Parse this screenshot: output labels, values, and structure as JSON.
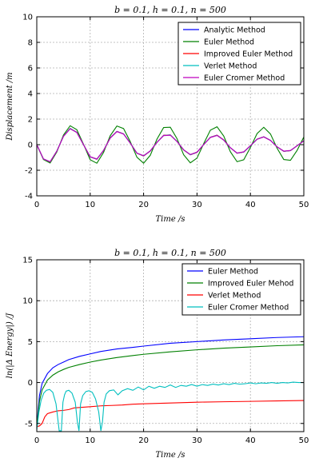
{
  "chart_data": [
    {
      "type": "line",
      "title": "b = 0.1, h = 0.1, n = 500",
      "xlabel": "Time /s",
      "ylabel": "Displacement /m",
      "xlim": [
        0,
        50
      ],
      "ylim": [
        -4,
        10
      ],
      "xticks": [
        0,
        10,
        20,
        30,
        40,
        50
      ],
      "yticks": [
        -4,
        -2,
        0,
        2,
        4,
        6,
        8,
        10
      ],
      "grid": true,
      "legend_position": "top-right",
      "series": [
        {
          "name": "Analytic Method",
          "color": "#0000ff",
          "x": [
            0,
            1.25,
            2.5,
            3.75,
            5,
            6.25,
            7.5,
            8.75,
            10,
            11.25,
            12.5,
            13.75,
            15,
            16.25,
            17.5,
            18.75,
            20,
            21.25,
            22.5,
            23.75,
            25,
            26.25,
            27.5,
            28.75,
            30,
            31.25,
            32.5,
            33.75,
            35,
            36.25,
            37.5,
            38.75,
            40,
            41.25,
            42.5,
            43.75,
            45,
            46.25,
            47.5,
            48.75,
            50
          ],
          "y": [
            0,
            -1.13,
            -1.35,
            -0.51,
            0.67,
            1.27,
            0.97,
            0.0,
            -0.96,
            -1.14,
            -0.46,
            0.53,
            1.04,
            0.85,
            0.13,
            -0.67,
            -0.88,
            -0.5,
            0.18,
            0.73,
            0.76,
            0.26,
            -0.41,
            -0.79,
            -0.6,
            0.01,
            0.58,
            0.74,
            0.37,
            -0.24,
            -0.67,
            -0.58,
            -0.09,
            0.43,
            0.62,
            0.34,
            -0.17,
            -0.52,
            -0.47,
            -0.08,
            0.31
          ]
        },
        {
          "name": "Euler Method",
          "color": "#008000",
          "x": [
            0,
            1.25,
            2.5,
            3.75,
            5,
            6.25,
            7.5,
            8.75,
            10,
            11.25,
            12.5,
            13.75,
            15,
            16.25,
            17.5,
            18.75,
            20,
            21.25,
            22.5,
            23.75,
            25,
            26.25,
            27.5,
            28.75,
            30,
            31.25,
            32.5,
            33.75,
            35,
            36.25,
            37.5,
            38.75,
            40,
            41.25,
            42.5,
            43.75,
            45,
            46.25,
            47.5,
            48.75,
            50
          ],
          "y": [
            0,
            -1.16,
            -1.43,
            -0.57,
            0.76,
            1.48,
            1.17,
            0.03,
            -1.18,
            -1.45,
            -0.61,
            0.7,
            1.46,
            1.26,
            0.24,
            -0.98,
            -1.45,
            -0.83,
            0.43,
            1.34,
            1.36,
            0.48,
            -0.79,
            -1.42,
            -1.05,
            0.08,
            1.13,
            1.4,
            0.68,
            -0.55,
            -1.33,
            -1.18,
            -0.22,
            0.87,
            1.36,
            0.84,
            -0.28,
            -1.16,
            -1.22,
            -0.44,
            0.6
          ]
        },
        {
          "name": "Improved Euler Method",
          "color": "#ff0000",
          "x": [
            0,
            1.25,
            2.5,
            3.75,
            5,
            6.25,
            7.5,
            8.75,
            10,
            11.25,
            12.5,
            13.75,
            15,
            16.25,
            17.5,
            18.75,
            20,
            21.25,
            22.5,
            23.75,
            25,
            26.25,
            27.5,
            28.75,
            30,
            31.25,
            32.5,
            33.75,
            35,
            36.25,
            37.5,
            38.75,
            40,
            41.25,
            42.5,
            43.75,
            45,
            46.25,
            47.5,
            48.75,
            50
          ],
          "y": [
            0,
            -1.13,
            -1.35,
            -0.51,
            0.67,
            1.27,
            0.97,
            0.0,
            -0.96,
            -1.14,
            -0.46,
            0.53,
            1.04,
            0.85,
            0.13,
            -0.67,
            -0.88,
            -0.5,
            0.18,
            0.73,
            0.76,
            0.26,
            -0.41,
            -0.79,
            -0.6,
            0.01,
            0.58,
            0.74,
            0.37,
            -0.24,
            -0.67,
            -0.58,
            -0.09,
            0.43,
            0.62,
            0.34,
            -0.17,
            -0.52,
            -0.47,
            -0.08,
            0.31
          ]
        },
        {
          "name": "Verlet Method",
          "color": "#00bfbf",
          "x": [
            0,
            1.25,
            2.5,
            3.75,
            5,
            6.25,
            7.5,
            8.75,
            10,
            11.25,
            12.5,
            13.75,
            15,
            16.25,
            17.5,
            18.75,
            20,
            21.25,
            22.5,
            23.75,
            25,
            26.25,
            27.5,
            28.75,
            30,
            31.25,
            32.5,
            33.75,
            35,
            36.25,
            37.5,
            38.75,
            40,
            41.25,
            42.5,
            43.75,
            45,
            46.25,
            47.5,
            48.75,
            50
          ],
          "y": [
            0,
            -1.12,
            -1.34,
            -0.5,
            0.66,
            1.26,
            0.96,
            0.0,
            -0.95,
            -1.13,
            -0.45,
            0.52,
            1.03,
            0.84,
            0.13,
            -0.66,
            -0.87,
            -0.49,
            0.18,
            0.72,
            0.75,
            0.26,
            -0.4,
            -0.78,
            -0.59,
            0.01,
            0.57,
            0.73,
            0.36,
            -0.24,
            -0.66,
            -0.57,
            -0.09,
            0.42,
            0.61,
            0.34,
            -0.17,
            -0.51,
            -0.46,
            -0.08,
            0.3
          ]
        },
        {
          "name": "Euler Cromer Method",
          "color": "#bf00bf",
          "x": [
            0,
            1.25,
            2.5,
            3.75,
            5,
            6.25,
            7.5,
            8.75,
            10,
            11.25,
            12.5,
            13.75,
            15,
            16.25,
            17.5,
            18.75,
            20,
            21.25,
            22.5,
            23.75,
            25,
            26.25,
            27.5,
            28.75,
            30,
            31.25,
            32.5,
            33.75,
            35,
            36.25,
            37.5,
            38.75,
            40,
            41.25,
            42.5,
            43.75,
            45,
            46.25,
            47.5,
            48.75,
            50
          ],
          "y": [
            0,
            -1.11,
            -1.33,
            -0.5,
            0.65,
            1.24,
            0.95,
            0.0,
            -0.94,
            -1.12,
            -0.45,
            0.51,
            1.02,
            0.83,
            0.12,
            -0.66,
            -0.86,
            -0.48,
            0.18,
            0.71,
            0.74,
            0.25,
            -0.4,
            -0.77,
            -0.58,
            0.01,
            0.56,
            0.72,
            0.36,
            -0.24,
            -0.65,
            -0.56,
            -0.08,
            0.42,
            0.6,
            0.33,
            -0.17,
            -0.5,
            -0.45,
            -0.08,
            0.3
          ]
        }
      ]
    },
    {
      "type": "line",
      "title": "b = 0.1, h = 0.1, n = 500",
      "xlabel": "Time /s",
      "ylabel": "ln(|Δ Energy|) /J",
      "xlim": [
        0,
        50
      ],
      "ylim": [
        -6,
        15
      ],
      "xticks": [
        0,
        10,
        20,
        30,
        40,
        50
      ],
      "yticks": [
        -5,
        0,
        5,
        10,
        15
      ],
      "grid": true,
      "legend_position": "top-right",
      "series": [
        {
          "name": "Euler Method",
          "color": "#0000ff",
          "x": [
            0.1,
            0.5,
            1,
            2,
            3,
            4,
            5,
            6,
            8,
            10,
            12,
            15,
            18,
            20,
            25,
            30,
            35,
            40,
            45,
            50
          ],
          "y": [
            -4.6,
            -1.6,
            -0.1,
            1.1,
            1.8,
            2.2,
            2.5,
            2.8,
            3.2,
            3.5,
            3.8,
            4.1,
            4.3,
            4.45,
            4.8,
            5.0,
            5.2,
            5.35,
            5.5,
            5.6
          ]
        },
        {
          "name": "Improved Euler Mehod",
          "color": "#008000",
          "x": [
            0.1,
            0.5,
            1,
            2,
            3,
            4,
            5,
            6,
            8,
            10,
            12,
            15,
            18,
            20,
            25,
            30,
            35,
            40,
            45,
            50
          ],
          "y": [
            -4.9,
            -2.3,
            -0.9,
            0.3,
            0.9,
            1.3,
            1.6,
            1.85,
            2.2,
            2.5,
            2.75,
            3.05,
            3.3,
            3.45,
            3.75,
            4.0,
            4.2,
            4.35,
            4.5,
            4.6
          ]
        },
        {
          "name": "Verlet Method",
          "color": "#ff0000",
          "x": [
            0,
            0.5,
            1,
            1.5,
            2,
            2.5,
            3,
            4,
            5,
            6,
            7,
            8,
            9,
            10,
            12,
            14,
            16,
            18,
            20,
            25,
            30,
            35,
            40,
            45,
            50
          ],
          "y": [
            -5.4,
            -5.3,
            -5.0,
            -4.2,
            -3.8,
            -3.7,
            -3.6,
            -3.45,
            -3.4,
            -3.3,
            -3.1,
            -3.05,
            -3.0,
            -2.95,
            -2.85,
            -2.8,
            -2.75,
            -2.65,
            -2.6,
            -2.5,
            -2.4,
            -2.35,
            -2.3,
            -2.25,
            -2.2
          ]
        },
        {
          "name": "Euler Cromer Method",
          "color": "#00bfbf",
          "x": [
            0,
            0.4,
            0.8,
            1.3,
            1.8,
            2.4,
            3.0,
            3.6,
            4.2,
            4.6,
            4.9,
            5.2,
            5.5,
            6.0,
            6.6,
            7.2,
            7.6,
            7.9,
            8.2,
            8.6,
            9.2,
            9.8,
            10.4,
            11.0,
            11.6,
            12.0,
            12.3,
            12.6,
            13.0,
            13.6,
            14.4,
            15.2,
            16.0,
            17.0,
            18.0,
            19.0,
            20.0,
            21.0,
            22.0,
            23.0,
            24.0,
            25.0,
            26.0,
            27.0,
            28.0,
            29.0,
            30.0,
            31.0,
            32.0,
            33.0,
            34.0,
            35.0,
            36.0,
            37.0,
            38.0,
            39.0,
            40.0,
            41.0,
            42.0,
            43.0,
            44.0,
            45.0,
            46.0,
            47.0,
            48.0,
            49.0,
            50.0
          ],
          "y": [
            -5.8,
            -3.6,
            -2.2,
            -1.3,
            -0.95,
            -0.85,
            -1.2,
            -2.6,
            -5.9,
            -5.9,
            -2.4,
            -1.5,
            -1.05,
            -0.95,
            -1.3,
            -2.4,
            -4.8,
            -5.9,
            -2.6,
            -1.6,
            -1.1,
            -1.0,
            -1.2,
            -2.0,
            -3.6,
            -5.9,
            -4.8,
            -2.4,
            -1.4,
            -1.0,
            -0.9,
            -1.5,
            -1.0,
            -0.75,
            -0.95,
            -0.55,
            -0.9,
            -0.45,
            -0.7,
            -0.45,
            -0.6,
            -0.3,
            -0.6,
            -0.35,
            -0.45,
            -0.25,
            -0.45,
            -0.25,
            -0.35,
            -0.2,
            -0.3,
            -0.15,
            -0.25,
            -0.1,
            -0.2,
            -0.15,
            -0.05,
            -0.15,
            -0.05,
            -0.1,
            0.0,
            -0.1,
            0.0,
            -0.05,
            0.05,
            0.0,
            0.0
          ]
        }
      ]
    }
  ]
}
